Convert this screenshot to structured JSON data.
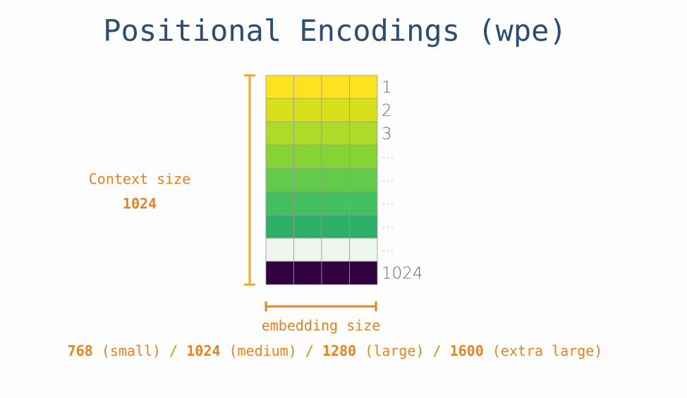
{
  "title": "Positional Encodings (wpe)",
  "context": {
    "label": "Context size",
    "value": "1024"
  },
  "rows": [
    {
      "label": "1",
      "color": "#fde31f"
    },
    {
      "label": "2",
      "color": "#d6e01b"
    },
    {
      "label": "3",
      "color": "#addc28"
    },
    {
      "label": "…",
      "color": "#86d334"
    },
    {
      "label": "…",
      "color": "#63cb4b"
    },
    {
      "label": "…",
      "color": "#44bf5e"
    },
    {
      "label": "…",
      "color": "#2fb068"
    },
    {
      "label": "…",
      "color": "#eef5ec"
    },
    {
      "label": "1024",
      "color": "#300040"
    }
  ],
  "embedding": {
    "label": "embedding size",
    "separator": "/",
    "sizes": [
      {
        "value": "768",
        "label": "(small)"
      },
      {
        "value": "1024",
        "label": "(medium)"
      },
      {
        "value": "1280",
        "label": "(large)"
      },
      {
        "value": "1600",
        "label": "(extra large)"
      }
    ]
  }
}
